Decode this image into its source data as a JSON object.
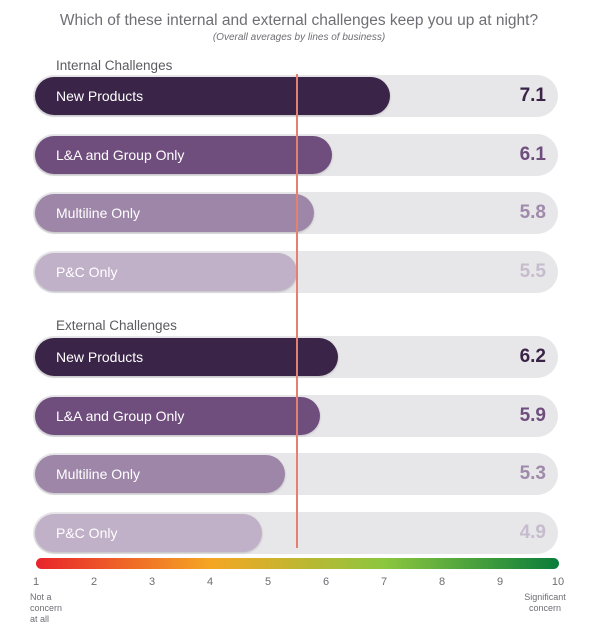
{
  "chart_data": {
    "type": "bar",
    "title": "Which of these internal and external challenges keep you up at night?",
    "subtitle": "(Overall averages by lines of business)",
    "xlim": [
      1,
      10
    ],
    "axis_ticks": [
      "1",
      "2",
      "3",
      "4",
      "5",
      "6",
      "7",
      "8",
      "9",
      "10"
    ],
    "scale_low_label": "Not a concern at all",
    "scale_high_label": "Significant concern",
    "reference_line_value": 5.5,
    "categories": [
      "New Products",
      "L&A and Group Only",
      "Multiline Only",
      "P&C Only"
    ],
    "groups": [
      {
        "name": "Internal Challenges",
        "bars": [
          {
            "label": "New Products",
            "value": 7.1,
            "display": "7.1"
          },
          {
            "label": "L&A and Group Only",
            "value": 6.1,
            "display": "6.1"
          },
          {
            "label": "Multiline Only",
            "value": 5.8,
            "display": "5.8"
          },
          {
            "label": "P&C Only",
            "value": 5.5,
            "display": "5.5"
          }
        ]
      },
      {
        "name": "External Challenges",
        "bars": [
          {
            "label": "New Products",
            "value": 6.2,
            "display": "6.2"
          },
          {
            "label": "L&A and Group Only",
            "value": 5.9,
            "display": "5.9"
          },
          {
            "label": "Multiline Only",
            "value": 5.3,
            "display": "5.3"
          },
          {
            "label": "P&C Only",
            "value": 4.9,
            "display": "4.9"
          }
        ]
      }
    ],
    "bar_colors": [
      "#3a2447",
      "#6f4d7d",
      "#9e86a9",
      "#c1b1c8"
    ],
    "value_colors": [
      "#3a2447",
      "#6f4d7d",
      "#a08aab",
      "#c7bccd"
    ],
    "track_color": "#e7e6e9",
    "reference_line_color": "#e48070",
    "scale_colors": [
      "#e8232b",
      "#f5a623",
      "#8cc63f",
      "#0a7d3b"
    ]
  }
}
